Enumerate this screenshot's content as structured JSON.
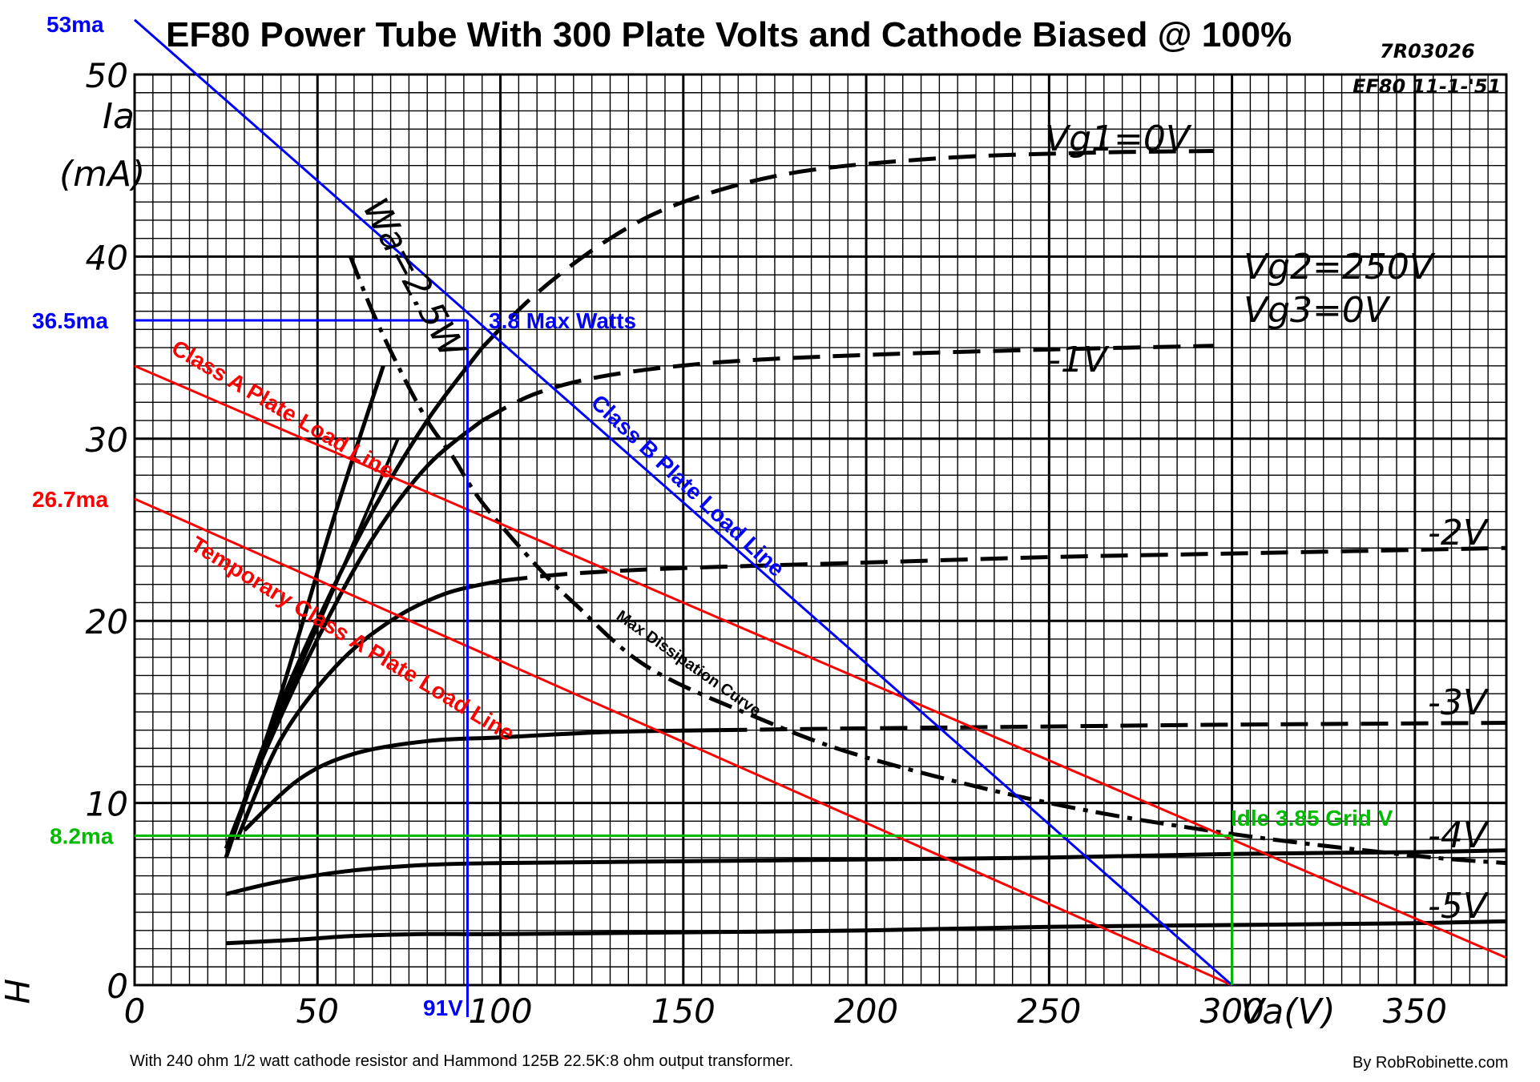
{
  "page": {
    "title": "EF80 Power Tube With 300 Plate Volts and Cathode Biased @ 100%",
    "code": "7R03026",
    "datasheet_tag": "EF80 11-1-'51",
    "footnote": "With 240 ohm 1/2 watt cathode resistor and Hammond 125B 22.5K:8 ohm output transformer.",
    "credit": "By RobRobinette.com",
    "side_mark": "H"
  },
  "chart_data": {
    "type": "line",
    "title": "EF80 Power Tube With 300 Plate Volts and Cathode Biased @ 100%",
    "xlabel": "Va(V)",
    "ylabel": "Ia (mA)",
    "xlim": [
      0,
      375
    ],
    "ylim": [
      0,
      50
    ],
    "grid": true,
    "x_ticks": [
      0,
      50,
      100,
      150,
      200,
      250,
      300,
      350
    ],
    "y_ticks": [
      0,
      10,
      20,
      30,
      40,
      50
    ],
    "ylabel_line1": "Ia",
    "ylabel_line2": "(mA)",
    "conditions": [
      "Vg2=250V",
      "Vg3=0V"
    ],
    "series": [
      {
        "name": "Vg1=0V",
        "style": "solid-then-dashed",
        "dash_from": 105,
        "points": [
          [
            25,
            7
          ],
          [
            35,
            13
          ],
          [
            50,
            20
          ],
          [
            65,
            26
          ],
          [
            80,
            31
          ],
          [
            95,
            35
          ],
          [
            110,
            38
          ],
          [
            130,
            41
          ],
          [
            150,
            43
          ],
          [
            180,
            44.6
          ],
          [
            220,
            45.4
          ],
          [
            260,
            45.7
          ],
          [
            295,
            45.8
          ]
        ]
      },
      {
        "name": "-1V",
        "style": "solid-then-dashed",
        "dash_from": 95,
        "points": [
          [
            25,
            7.5
          ],
          [
            35,
            12.5
          ],
          [
            50,
            19
          ],
          [
            65,
            24.5
          ],
          [
            80,
            28.5
          ],
          [
            95,
            31
          ],
          [
            110,
            32.5
          ],
          [
            130,
            33.5
          ],
          [
            160,
            34.2
          ],
          [
            200,
            34.6
          ],
          [
            250,
            34.9
          ],
          [
            295,
            35.1
          ]
        ]
      },
      {
        "name": "-2V",
        "style": "solid-then-dashed",
        "dash_from": 115,
        "points": [
          [
            28,
            8
          ],
          [
            40,
            13.5
          ],
          [
            55,
            17.5
          ],
          [
            70,
            20
          ],
          [
            85,
            21.5
          ],
          [
            100,
            22.2
          ],
          [
            120,
            22.6
          ],
          [
            150,
            22.9
          ],
          [
            200,
            23.2
          ],
          [
            250,
            23.5
          ],
          [
            300,
            23.7
          ],
          [
            375,
            24
          ]
        ]
      },
      {
        "name": "-3V",
        "style": "solid-then-dashed",
        "dash_from": 180,
        "points": [
          [
            30,
            8.5
          ],
          [
            45,
            11.3
          ],
          [
            60,
            12.7
          ],
          [
            80,
            13.4
          ],
          [
            100,
            13.6
          ],
          [
            130,
            13.9
          ],
          [
            160,
            14
          ],
          [
            200,
            14.1
          ],
          [
            250,
            14.2
          ],
          [
            300,
            14.3
          ],
          [
            375,
            14.4
          ]
        ]
      },
      {
        "name": "-4V",
        "style": "solid",
        "points": [
          [
            25,
            5
          ],
          [
            40,
            5.7
          ],
          [
            60,
            6.3
          ],
          [
            80,
            6.6
          ],
          [
            100,
            6.7
          ],
          [
            150,
            6.8
          ],
          [
            200,
            6.9
          ],
          [
            250,
            7.0
          ],
          [
            300,
            7.2
          ],
          [
            350,
            7.3
          ],
          [
            375,
            7.4
          ]
        ]
      },
      {
        "name": "-5V",
        "style": "solid",
        "points": [
          [
            25,
            2.3
          ],
          [
            45,
            2.5
          ],
          [
            60,
            2.7
          ],
          [
            80,
            2.8
          ],
          [
            100,
            2.8
          ],
          [
            150,
            2.9
          ],
          [
            200,
            3.0
          ],
          [
            250,
            3.2
          ],
          [
            300,
            3.3
          ],
          [
            350,
            3.4
          ],
          [
            375,
            3.5
          ]
        ]
      },
      {
        "name": "Wa=2.5W",
        "style": "dash-dot",
        "points": [
          [
            59,
            40
          ],
          [
            65,
            37
          ],
          [
            72,
            34
          ],
          [
            80,
            31
          ],
          [
            87,
            29
          ],
          [
            95,
            26.5
          ],
          [
            110,
            23
          ],
          [
            120,
            21
          ],
          [
            140,
            17.5
          ],
          [
            170,
            14.7
          ],
          [
            200,
            12.5
          ],
          [
            250,
            10
          ],
          [
            300,
            8.3
          ],
          [
            350,
            7.1
          ],
          [
            375,
            6.7
          ]
        ]
      },
      {
        "name": "Class A Plate Load Line",
        "color": "#ff0000",
        "points": [
          [
            0,
            34
          ],
          [
            375,
            1.5
          ]
        ]
      },
      {
        "name": "Temporary Class A Plate Load Line",
        "color": "#ff0000",
        "points": [
          [
            0,
            26.7
          ],
          [
            300,
            0
          ]
        ]
      },
      {
        "name": "Class B Plate Load Line",
        "color": "#0000ff",
        "points": [
          [
            0,
            53
          ],
          [
            300,
            0
          ]
        ]
      }
    ],
    "markers": [
      {
        "label": "36.5ma",
        "y": 36.5,
        "x": 91,
        "color": "#0000ff"
      },
      {
        "label": "8.2ma",
        "y": 8.2,
        "x": 300,
        "color": "#00bb00"
      }
    ],
    "annotations": {
      "y53": "53ma",
      "y365": "36.5ma",
      "y267": "26.7ma",
      "y82": "8.2ma",
      "x91": "91V",
      "max_watts": "3.8 Max Watts",
      "idle": "Idle 3.85 Grid V",
      "classA": "Class A Plate Load Line",
      "classB": "Class B Plate Load Line",
      "tempA": "Temporary Class A Plate Load Line",
      "max_diss": "Max Dissipation Curve",
      "wa": "Wa=2.5W"
    },
    "curve_labels": {
      "g0": "Vg1=0V",
      "g1": "-1V",
      "g2": "-2V",
      "g3": "-3V",
      "g4": "-4V",
      "g5": "-5V"
    },
    "colors": {
      "red": "#ff0000",
      "blue": "#0000ff",
      "green": "#00bb00",
      "black": "#000000"
    }
  }
}
